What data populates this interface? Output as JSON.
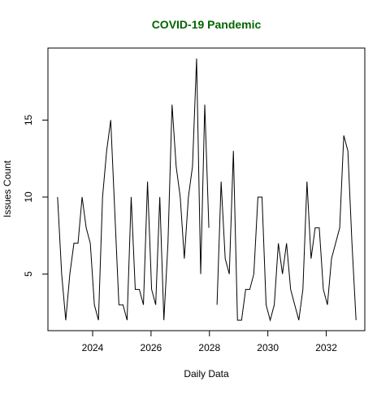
{
  "chart_data": {
    "type": "line",
    "title": "COVID-19 Pandemic",
    "title_color": "#006400",
    "xlabel": "Daily Data",
    "ylabel": "Issues Count",
    "line_color": "#000000",
    "xlim": [
      2022.47,
      2033.32
    ],
    "ylim": [
      1.32,
      19.68
    ],
    "grid": false,
    "x_ticks": [
      {
        "value": 2024,
        "label": "2024"
      },
      {
        "value": 2026,
        "label": "2026"
      },
      {
        "value": 2028,
        "label": "2028"
      },
      {
        "value": 2030,
        "label": "2030"
      },
      {
        "value": 2032,
        "label": "2032"
      }
    ],
    "y_ticks": [
      {
        "value": 5,
        "label": "5"
      },
      {
        "value": 10,
        "label": "10"
      },
      {
        "value": 15,
        "label": "15"
      }
    ],
    "series": [
      {
        "x": [
          2022.8,
          2022.94,
          2023.08,
          2023.22,
          2023.36,
          2023.5,
          2023.64,
          2023.78,
          2023.92,
          2024.06,
          2024.2,
          2024.34,
          2024.48,
          2024.62,
          2024.76,
          2024.9,
          2025.04,
          2025.18,
          2025.32,
          2025.46,
          2025.6,
          2025.74,
          2025.88,
          2026.02,
          2026.16,
          2026.3,
          2026.44,
          2026.58,
          2026.72,
          2026.86,
          2027.0,
          2027.14,
          2027.28,
          2027.42,
          2027.56,
          2027.7,
          2027.84,
          2027.98,
          2028.12,
          2028.26,
          2028.4,
          2028.54,
          2028.68,
          2028.82,
          2028.96,
          2029.1,
          2029.24,
          2029.38,
          2029.52,
          2029.66,
          2029.8,
          2029.94,
          2030.08,
          2030.22,
          2030.36,
          2030.5,
          2030.64,
          2030.78,
          2030.92,
          2031.06,
          2031.2,
          2031.34,
          2031.48,
          2031.62,
          2031.76,
          2031.9,
          2032.04,
          2032.18,
          2032.32,
          2032.46,
          2032.6,
          2032.74,
          2032.88,
          2033.02
        ],
        "y": [
          10,
          5,
          2,
          5,
          7,
          7,
          10,
          8,
          7,
          3,
          2,
          10,
          13,
          15,
          9,
          3,
          3,
          2,
          10,
          4,
          4,
          3,
          11,
          4,
          3,
          10,
          2,
          7,
          16,
          12,
          10,
          6,
          10,
          12,
          19,
          5,
          16,
          8,
          null,
          3,
          11,
          6,
          5,
          13,
          2,
          2,
          4,
          4,
          5,
          10,
          10,
          3,
          2,
          3,
          7,
          5,
          7,
          4,
          3,
          2,
          4,
          11,
          6,
          8,
          8,
          4,
          3,
          6,
          7,
          8,
          14,
          13,
          7,
          2
        ]
      }
    ]
  }
}
